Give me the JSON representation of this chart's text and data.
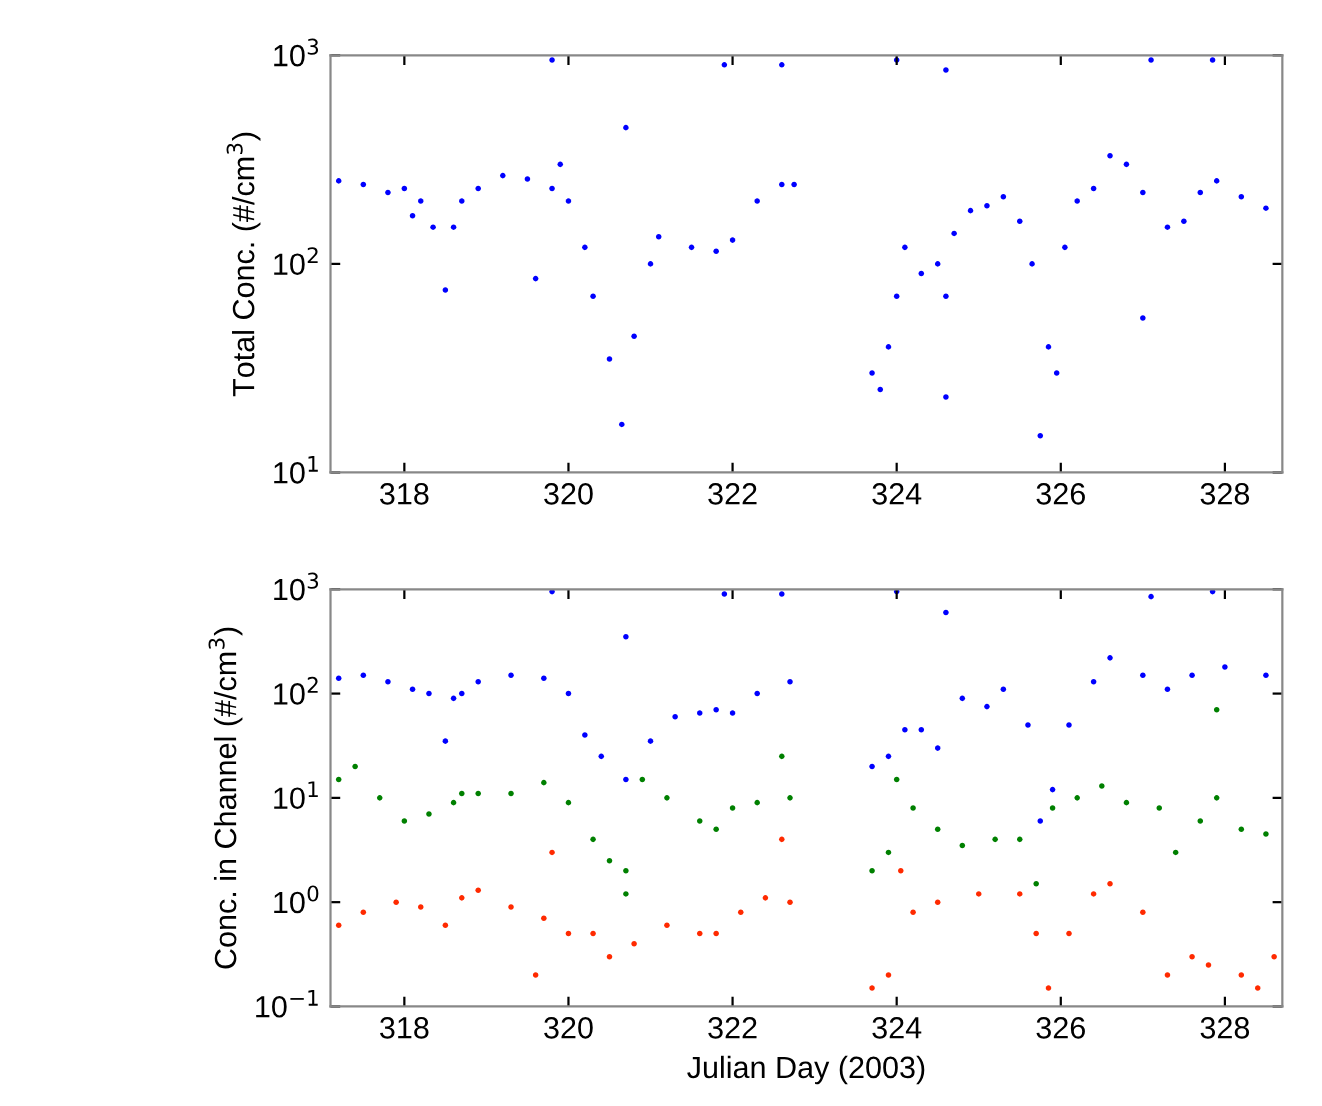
{
  "chart_data": [
    {
      "type": "scatter",
      "ylabel": "Total Conc. (#/cm$^{3}$)",
      "log": "y",
      "xlim": [
        317.1,
        328.7
      ],
      "ylim": [
        10,
        1000
      ],
      "xticks": [
        318,
        320,
        322,
        324,
        326,
        328
      ],
      "yticks": [
        {
          "value": 10,
          "label": "10$^{1}$"
        },
        {
          "value": 100,
          "label": "10$^{2}$"
        },
        {
          "value": 1000,
          "label": "10$^{3}$"
        }
      ],
      "grid": false,
      "legend": false,
      "marker": "circle",
      "series": [
        {
          "color": "#0000ff",
          "x": [
            317.2,
            317.5,
            317.8,
            318.0,
            318.1,
            318.2,
            318.35,
            318.5,
            318.6,
            318.7,
            318.9,
            319.2,
            319.5,
            319.6,
            319.8,
            319.8,
            319.9,
            320.0,
            320.2,
            320.3,
            320.5,
            320.65,
            320.7,
            320.8,
            321.0,
            321.1,
            321.5,
            321.8,
            321.9,
            322.0,
            322.3,
            322.6,
            322.6,
            322.75,
            323.7,
            323.8,
            323.9,
            324.0,
            324.0,
            324.1,
            324.3,
            324.5,
            324.6,
            324.6,
            324.6,
            324.7,
            324.9,
            325.1,
            325.3,
            325.5,
            325.65,
            325.75,
            325.85,
            325.95,
            326.05,
            326.2,
            326.4,
            326.6,
            326.8,
            327.0,
            327.0,
            327.1,
            327.3,
            327.5,
            327.7,
            327.85,
            327.9,
            328.2,
            328.5
          ],
          "values": [
            250,
            240,
            220,
            230,
            170,
            200,
            150,
            75,
            150,
            200,
            230,
            265,
            255,
            85,
            950,
            230,
            300,
            200,
            120,
            70,
            35,
            17,
            450,
            45,
            100,
            135,
            120,
            115,
            900,
            130,
            200,
            240,
            900,
            240,
            30,
            25,
            40,
            70,
            950,
            120,
            90,
            100,
            70,
            850,
            23,
            140,
            180,
            190,
            210,
            160,
            100,
            15,
            40,
            30,
            120,
            200,
            230,
            330,
            300,
            220,
            55,
            950,
            150,
            160,
            220,
            950,
            250,
            210,
            185
          ]
        }
      ]
    },
    {
      "type": "scatter",
      "xlabel": "Julian Day (2003)",
      "ylabel": "Conc. in Channel (#/cm$^{3}$)",
      "log": "y",
      "xlim": [
        317.1,
        328.7
      ],
      "ylim": [
        0.1,
        1000
      ],
      "xticks": [
        318,
        320,
        322,
        324,
        326,
        328
      ],
      "yticks": [
        {
          "value": 0.1,
          "label": "10$^{−1}$"
        },
        {
          "value": 1,
          "label": "10$^{0}$"
        },
        {
          "value": 10,
          "label": "10$^{1}$"
        },
        {
          "value": 100,
          "label": "10$^{2}$"
        },
        {
          "value": 1000,
          "label": "10$^{3}$"
        }
      ],
      "grid": false,
      "legend": false,
      "marker": "circle",
      "series": [
        {
          "color": "#0000ff",
          "x": [
            317.2,
            317.5,
            317.8,
            318.1,
            318.3,
            318.5,
            318.6,
            318.7,
            318.9,
            319.3,
            319.7,
            319.8,
            320.0,
            320.2,
            320.4,
            320.7,
            320.7,
            321.0,
            321.3,
            321.6,
            321.8,
            321.9,
            322.0,
            322.3,
            322.6,
            322.7,
            323.7,
            323.9,
            324.0,
            324.1,
            324.3,
            324.5,
            324.6,
            324.8,
            325.1,
            325.3,
            325.6,
            325.75,
            325.9,
            326.1,
            326.4,
            326.6,
            327.0,
            327.1,
            327.3,
            327.6,
            327.85,
            328.0,
            328.5
          ],
          "values": [
            140,
            150,
            130,
            110,
            100,
            35,
            90,
            100,
            130,
            150,
            140,
            950,
            100,
            40,
            25,
            15,
            350,
            35,
            60,
            65,
            70,
            900,
            65,
            100,
            900,
            130,
            20,
            25,
            950,
            45,
            45,
            30,
            600,
            90,
            75,
            110,
            50,
            6,
            12,
            50,
            130,
            220,
            150,
            850,
            110,
            150,
            950,
            180,
            150
          ]
        },
        {
          "color": "#008000",
          "x": [
            317.2,
            317.4,
            317.7,
            318.0,
            318.3,
            318.6,
            318.7,
            318.9,
            319.3,
            319.7,
            320.0,
            320.3,
            320.5,
            320.7,
            320.7,
            320.9,
            321.2,
            321.6,
            321.8,
            322.0,
            322.3,
            322.6,
            322.7,
            323.7,
            323.9,
            324.0,
            324.2,
            324.5,
            324.8,
            325.2,
            325.5,
            325.7,
            325.9,
            326.2,
            326.5,
            326.8,
            327.2,
            327.4,
            327.7,
            327.9,
            327.9,
            328.2,
            328.5
          ],
          "values": [
            15,
            20,
            10,
            6,
            7,
            9,
            11,
            11,
            11,
            14,
            9,
            4,
            2.5,
            2,
            1.2,
            15,
            10,
            6,
            5,
            8,
            9,
            25,
            10,
            2,
            3,
            15,
            8,
            5,
            3.5,
            4,
            4,
            1.5,
            8,
            10,
            13,
            9,
            8,
            3,
            6,
            10,
            70,
            5,
            4.5
          ]
        },
        {
          "color": "#ff2a00",
          "x": [
            317.2,
            317.5,
            317.9,
            318.2,
            318.5,
            318.7,
            318.9,
            319.3,
            319.6,
            319.7,
            319.8,
            320.0,
            320.3,
            320.5,
            320.8,
            321.2,
            321.6,
            321.8,
            322.1,
            322.4,
            322.6,
            322.7,
            323.7,
            323.9,
            324.05,
            324.2,
            324.5,
            325.0,
            325.5,
            325.7,
            325.85,
            326.1,
            326.4,
            326.6,
            327.0,
            327.3,
            327.6,
            327.8,
            328.2,
            328.4,
            328.6
          ],
          "values": [
            0.6,
            0.8,
            1.0,
            0.9,
            0.6,
            1.1,
            1.3,
            0.9,
            0.2,
            0.7,
            3,
            0.5,
            0.5,
            0.3,
            0.4,
            0.6,
            0.5,
            0.5,
            0.8,
            1.1,
            4,
            1.0,
            0.15,
            0.2,
            2.0,
            0.8,
            1.0,
            1.2,
            1.2,
            0.5,
            0.15,
            0.5,
            1.2,
            1.5,
            0.8,
            0.2,
            0.3,
            0.25,
            0.2,
            0.15,
            0.3
          ]
        }
      ]
    }
  ]
}
